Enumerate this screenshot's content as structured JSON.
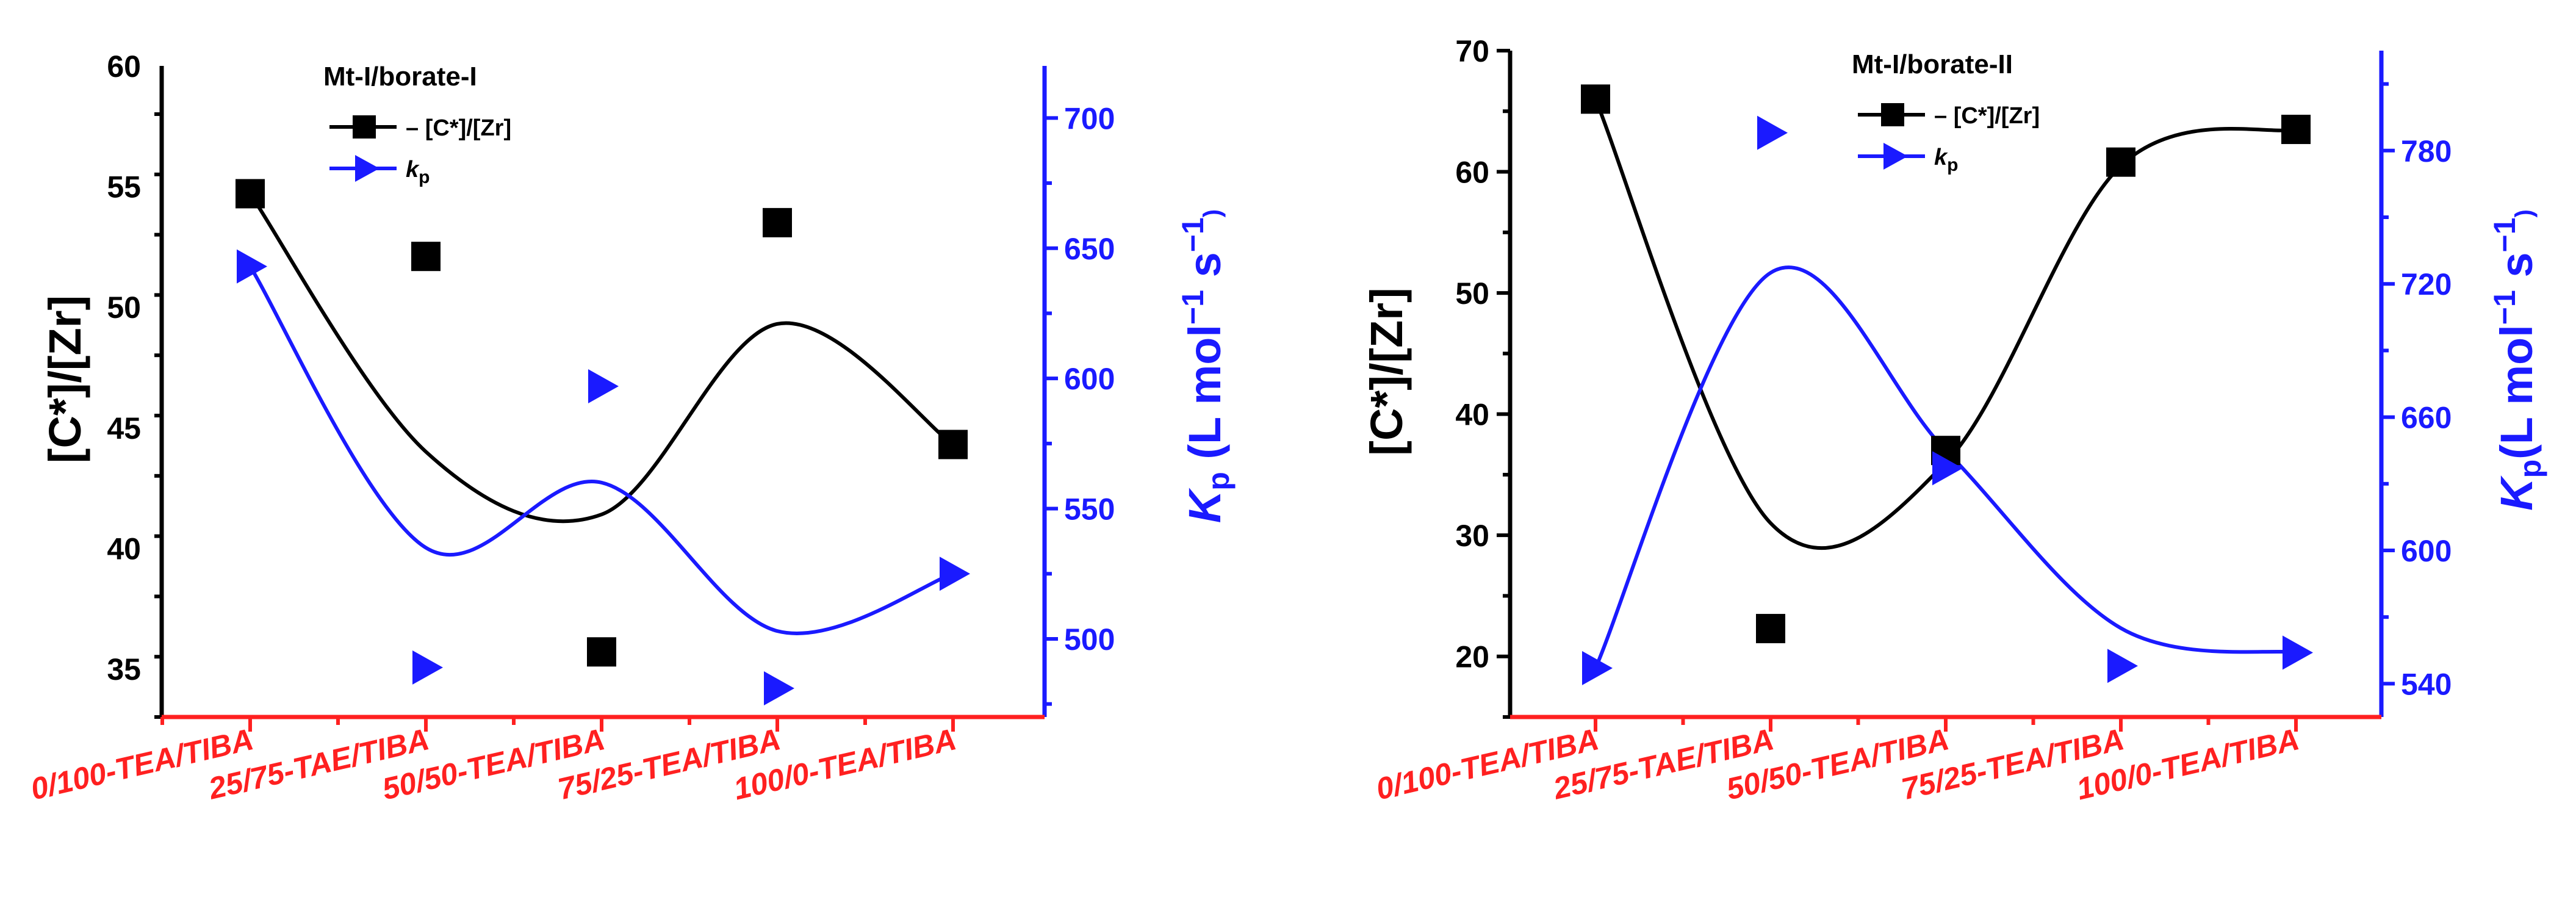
{
  "charts": [
    {
      "type": "line",
      "categories": [
        "0/100-TEA/TIBA",
        "25/75-TAE/TIBA",
        "50/50-TEA/TIBA",
        "75/25-TEA/TIBA",
        "100/0-TEA/TIBA"
      ],
      "legend_title": "Mt-I/borate-I",
      "y_left": {
        "label": "[C*]/[Zr]",
        "ylim": [
          33,
          60
        ],
        "ticks": [
          35,
          40,
          45,
          50,
          55,
          60
        ],
        "color": "#000000"
      },
      "y_right": {
        "label_main": "K",
        "label_sub": "p",
        "label_rest": " (L mol",
        "label_sup1": "−1",
        "label_mid": " s",
        "label_sup2": "−1",
        "label_end": ")",
        "ylim": [
          470,
          720
        ],
        "ticks": [
          500,
          550,
          600,
          650,
          700
        ],
        "color": "#1a1aff"
      },
      "series": [
        {
          "name": "[C*]/[Zr]",
          "legend_prefix": "– ",
          "axis": "left",
          "marker": "square",
          "color": "#000000",
          "values": [
            54.7,
            52.1,
            35.7,
            53.5,
            44.3
          ],
          "fit_curve": [
            54.7,
            44.0,
            41.4,
            49.3,
            44.3
          ]
        },
        {
          "name": "k",
          "name_sub": "p",
          "legend_prefix": "",
          "axis": "right",
          "marker": "triangle-right",
          "color": "#1a1aff",
          "values": [
            643,
            489,
            597,
            481,
            525
          ],
          "fit_curve": [
            643,
            535,
            560,
            503,
            525
          ]
        }
      ]
    },
    {
      "type": "line",
      "categories": [
        "0/100-TEA/TIBA",
        "25/75-TAE/TIBA",
        "50/50-TEA/TIBA",
        "75/25-TEA/TIBA",
        "100/0-TEA/TIBA"
      ],
      "legend_title": "Mt-I/borate-II",
      "y_left": {
        "label": "[C*]/[Zr]",
        "ylim": [
          15,
          70
        ],
        "ticks": [
          20,
          30,
          40,
          50,
          60,
          70
        ],
        "color": "#000000"
      },
      "y_right": {
        "label_main": "K",
        "label_sub": "p",
        "label_rest": "(L mol",
        "label_sup1": "−1",
        "label_mid": " s",
        "label_sup2": "−1",
        "label_end": ")",
        "ylim": [
          525,
          825
        ],
        "ticks": [
          540,
          600,
          660,
          720,
          780
        ],
        "color": "#1a1aff"
      },
      "series": [
        {
          "name": "[C*]/[Zr]",
          "legend_prefix": "– ",
          "axis": "left",
          "marker": "square",
          "color": "#000000",
          "values": [
            66.0,
            22.3,
            37.0,
            60.8,
            63.5
          ],
          "fit_curve": [
            66.0,
            31.0,
            36.0,
            60.5,
            63.5
          ]
        },
        {
          "name": "k",
          "name_sub": "p",
          "legend_prefix": "",
          "axis": "right",
          "marker": "triangle-right",
          "color": "#1a1aff",
          "values": [
            547,
            788,
            637,
            548,
            554
          ],
          "fit_curve": [
            547,
            725,
            645,
            565,
            554
          ]
        }
      ]
    }
  ]
}
